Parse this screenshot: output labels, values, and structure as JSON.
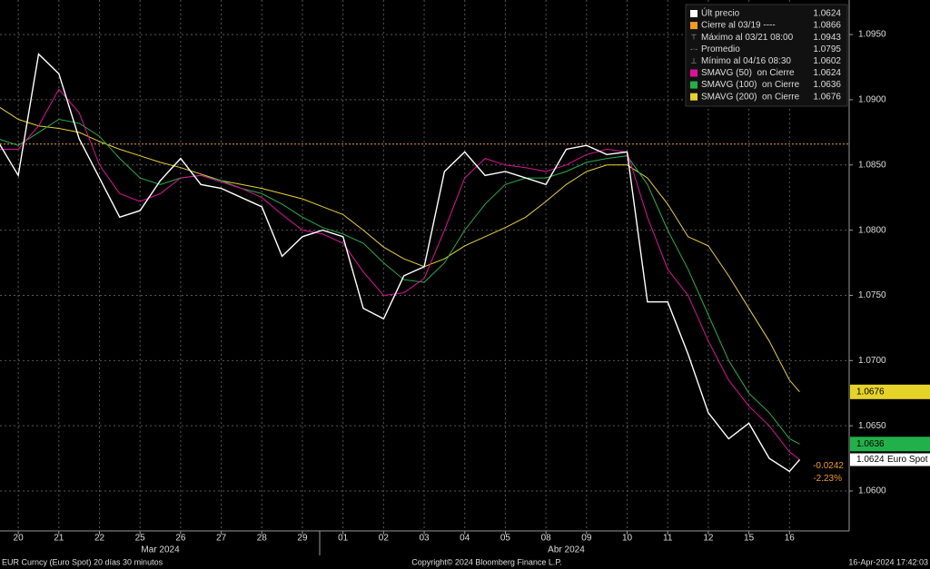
{
  "chart_data": {
    "type": "line",
    "x": [
      -0.5,
      0,
      0.5,
      1,
      1.5,
      2,
      2.5,
      3,
      3.5,
      4,
      4.5,
      5,
      5.5,
      6,
      6.5,
      7,
      7.5,
      8,
      8.5,
      9,
      9.5,
      10,
      10.5,
      11,
      11.5,
      12,
      12.5,
      13,
      13.5,
      14,
      14.5,
      15,
      15.5,
      16,
      16.5,
      17,
      17.5,
      18,
      18.5,
      19,
      19.25
    ],
    "xlim": [
      -0.45,
      20.47
    ],
    "xticks": [
      {
        "value": 0,
        "label": "20"
      },
      {
        "value": 1,
        "label": "21"
      },
      {
        "value": 2,
        "label": "22"
      },
      {
        "value": 3,
        "label": "25"
      },
      {
        "value": 4,
        "label": "26"
      },
      {
        "value": 5,
        "label": "27"
      },
      {
        "value": 6,
        "label": "28"
      },
      {
        "value": 7,
        "label": "29"
      },
      {
        "value": 8,
        "label": "01"
      },
      {
        "value": 9,
        "label": "02"
      },
      {
        "value": 10,
        "label": "03"
      },
      {
        "value": 11,
        "label": "04"
      },
      {
        "value": 12,
        "label": "05"
      },
      {
        "value": 13,
        "label": "08"
      },
      {
        "value": 14,
        "label": "09"
      },
      {
        "value": 15,
        "label": "10"
      },
      {
        "value": 16,
        "label": "11"
      },
      {
        "value": 17,
        "label": "12"
      },
      {
        "value": 18,
        "label": "15"
      },
      {
        "value": 19,
        "label": "16"
      }
    ],
    "months": [
      {
        "value": 3.5,
        "label": "Mar 2024"
      },
      {
        "value": 13.5,
        "label": "Abr 2024"
      }
    ],
    "ylim": [
      1.05694,
      1.09765
    ],
    "yticks": [
      {
        "value": 1.06,
        "label": "1.0600"
      },
      {
        "value": 1.065,
        "label": "1.0650"
      },
      {
        "value": 1.07,
        "label": "1.0700"
      },
      {
        "value": 1.075,
        "label": "1.0750"
      },
      {
        "value": 1.08,
        "label": "1.0800"
      },
      {
        "value": 1.085,
        "label": "1.0850"
      },
      {
        "value": 1.09,
        "label": "1.0900"
      },
      {
        "value": 1.095,
        "label": "1.0950"
      }
    ],
    "grid": true,
    "series": [
      {
        "name": "Últ precio",
        "color": "#ffffff",
        "last": 1.0624,
        "tag": "Euro Spot",
        "values": [
          1.0868,
          1.0842,
          1.0935,
          1.092,
          1.087,
          1.084,
          1.081,
          1.0815,
          1.0838,
          1.0855,
          1.0835,
          1.0832,
          1.0825,
          1.0818,
          1.078,
          1.0795,
          1.08,
          1.0795,
          1.074,
          1.0732,
          1.0765,
          1.0772,
          1.0845,
          1.086,
          1.0842,
          1.0845,
          1.084,
          1.0835,
          1.0862,
          1.0865,
          1.0858,
          1.086,
          1.0745,
          1.0745,
          1.0705,
          1.066,
          1.064,
          1.0652,
          1.0625,
          1.0615,
          1.0624
        ]
      },
      {
        "name": "SMAVG (50)  on Cierre",
        "color": "#e0109a",
        "last": 1.0624,
        "values": [
          1.0862,
          1.0862,
          1.088,
          1.0908,
          1.089,
          1.085,
          1.0828,
          1.0822,
          1.0828,
          1.084,
          1.0842,
          1.0837,
          1.0832,
          1.0825,
          1.0812,
          1.08,
          1.0797,
          1.079,
          1.0768,
          1.075,
          1.0752,
          1.0763,
          1.08,
          1.084,
          1.0855,
          1.085,
          1.0848,
          1.0845,
          1.085,
          1.0858,
          1.0862,
          1.086,
          1.081,
          1.077,
          1.075,
          1.0715,
          1.0685,
          1.0665,
          1.065,
          1.063,
          1.0624
        ]
      },
      {
        "name": "SMAVG (100)  on Cierre",
        "color": "#22b04a",
        "last": 1.0636,
        "values": [
          1.087,
          1.0865,
          1.0875,
          1.0885,
          1.0882,
          1.0872,
          1.0855,
          1.084,
          1.0835,
          1.084,
          1.0842,
          1.0838,
          1.0832,
          1.0828,
          1.082,
          1.081,
          1.0802,
          1.0797,
          1.079,
          1.0775,
          1.0762,
          1.076,
          1.0775,
          1.08,
          1.082,
          1.0835,
          1.084,
          1.084,
          1.0845,
          1.0852,
          1.0855,
          1.0857,
          1.0835,
          1.08,
          1.077,
          1.0735,
          1.07,
          1.0675,
          1.066,
          1.064,
          1.0636
        ]
      },
      {
        "name": "SMAVG (200)  on Cierre",
        "color": "#e6d32a",
        "last": 1.0676,
        "values": [
          1.0895,
          1.0885,
          1.088,
          1.0878,
          1.0875,
          1.0868,
          1.0862,
          1.0857,
          1.0852,
          1.0848,
          1.0843,
          1.0838,
          1.0835,
          1.0832,
          1.0828,
          1.0824,
          1.0818,
          1.0812,
          1.08,
          1.0787,
          1.0778,
          1.0772,
          1.0778,
          1.0788,
          1.0795,
          1.0802,
          1.081,
          1.0822,
          1.0835,
          1.0845,
          1.085,
          1.085,
          1.084,
          1.082,
          1.0795,
          1.0788,
          1.0765,
          1.074,
          1.0715,
          1.0685,
          1.0676
        ]
      }
    ],
    "reference": {
      "name": "Cierre al 03/19 ----",
      "value": 1.0866,
      "color": "#f39c1e"
    },
    "stats": [
      {
        "name": "Máximo al 03/21 08:00",
        "value": 1.0943,
        "symbol": "⊤"
      },
      {
        "name": "Promedio",
        "value": 1.0795,
        "symbol": "-·-"
      },
      {
        "name": "Mínimo al 04/16 08:30",
        "value": 1.0602,
        "symbol": "⊥"
      }
    ],
    "change": {
      "value": -0.0242,
      "label": "-0.0242"
    },
    "change_pct": {
      "value": -2.23,
      "label": "-2.23%"
    },
    "footer": {
      "left": "EUR Curncy (Euro Spot) 20 días 30 minutos",
      "center": "Copyright© 2024 Bloomberg Finance L.P.",
      "right": "16-Apr-2024 17:42:03"
    }
  }
}
